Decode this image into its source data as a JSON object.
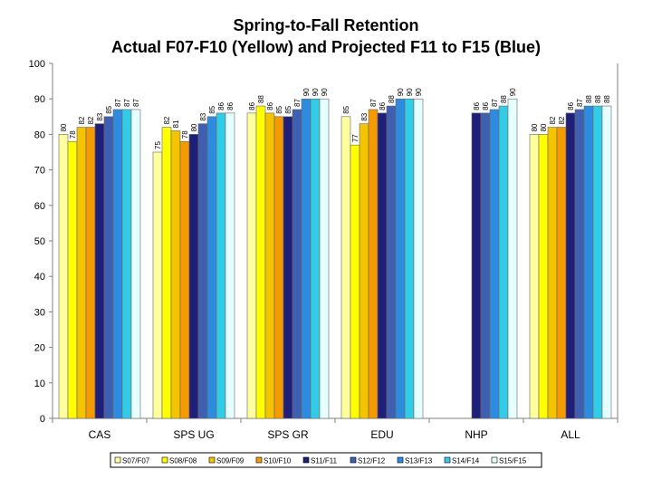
{
  "chart_data": {
    "type": "bar",
    "title": "Spring-to-Fall Retention",
    "subtitle": "Actual F07-F10 (Yellow) and Projected F11 to F15 (Blue)",
    "xlabel": "",
    "ylabel": "",
    "ylim": [
      0,
      100
    ],
    "yticks": [
      0,
      10,
      20,
      30,
      40,
      50,
      60,
      70,
      80,
      90,
      100
    ],
    "categories": [
      "CAS",
      "SPS UG",
      "SPS GR",
      "EDU",
      "NHP",
      "ALL"
    ],
    "series": [
      {
        "name": "S07/F07",
        "color": "#FFFFA0",
        "values": [
          80,
          75,
          86,
          85,
          null,
          80
        ]
      },
      {
        "name": "S08/F08",
        "color": "#FFFF00",
        "values": [
          78,
          82,
          88,
          77,
          null,
          80
        ]
      },
      {
        "name": "S09/F09",
        "color": "#F5C400",
        "values": [
          82,
          81,
          86,
          83,
          null,
          82
        ]
      },
      {
        "name": "S10/F10",
        "color": "#F59A00",
        "values": [
          82,
          78,
          85,
          87,
          null,
          82
        ]
      },
      {
        "name": "S11/F11",
        "color": "#1F1F7A",
        "values": [
          83,
          80,
          85,
          86,
          86,
          86
        ]
      },
      {
        "name": "S12/F12",
        "color": "#3F5FB0",
        "values": [
          85,
          83,
          87,
          88,
          86,
          87
        ]
      },
      {
        "name": "S13/F13",
        "color": "#2E8CE0",
        "values": [
          87,
          85,
          90,
          90,
          87,
          88
        ]
      },
      {
        "name": "S14/F14",
        "color": "#33CCE6",
        "values": [
          87,
          86,
          90,
          90,
          88,
          88
        ]
      },
      {
        "name": "S15/F15",
        "color": "#E6FFFF",
        "values": [
          87,
          86,
          90,
          90,
          90,
          88
        ]
      }
    ],
    "grid": false,
    "legend": "bottom"
  }
}
